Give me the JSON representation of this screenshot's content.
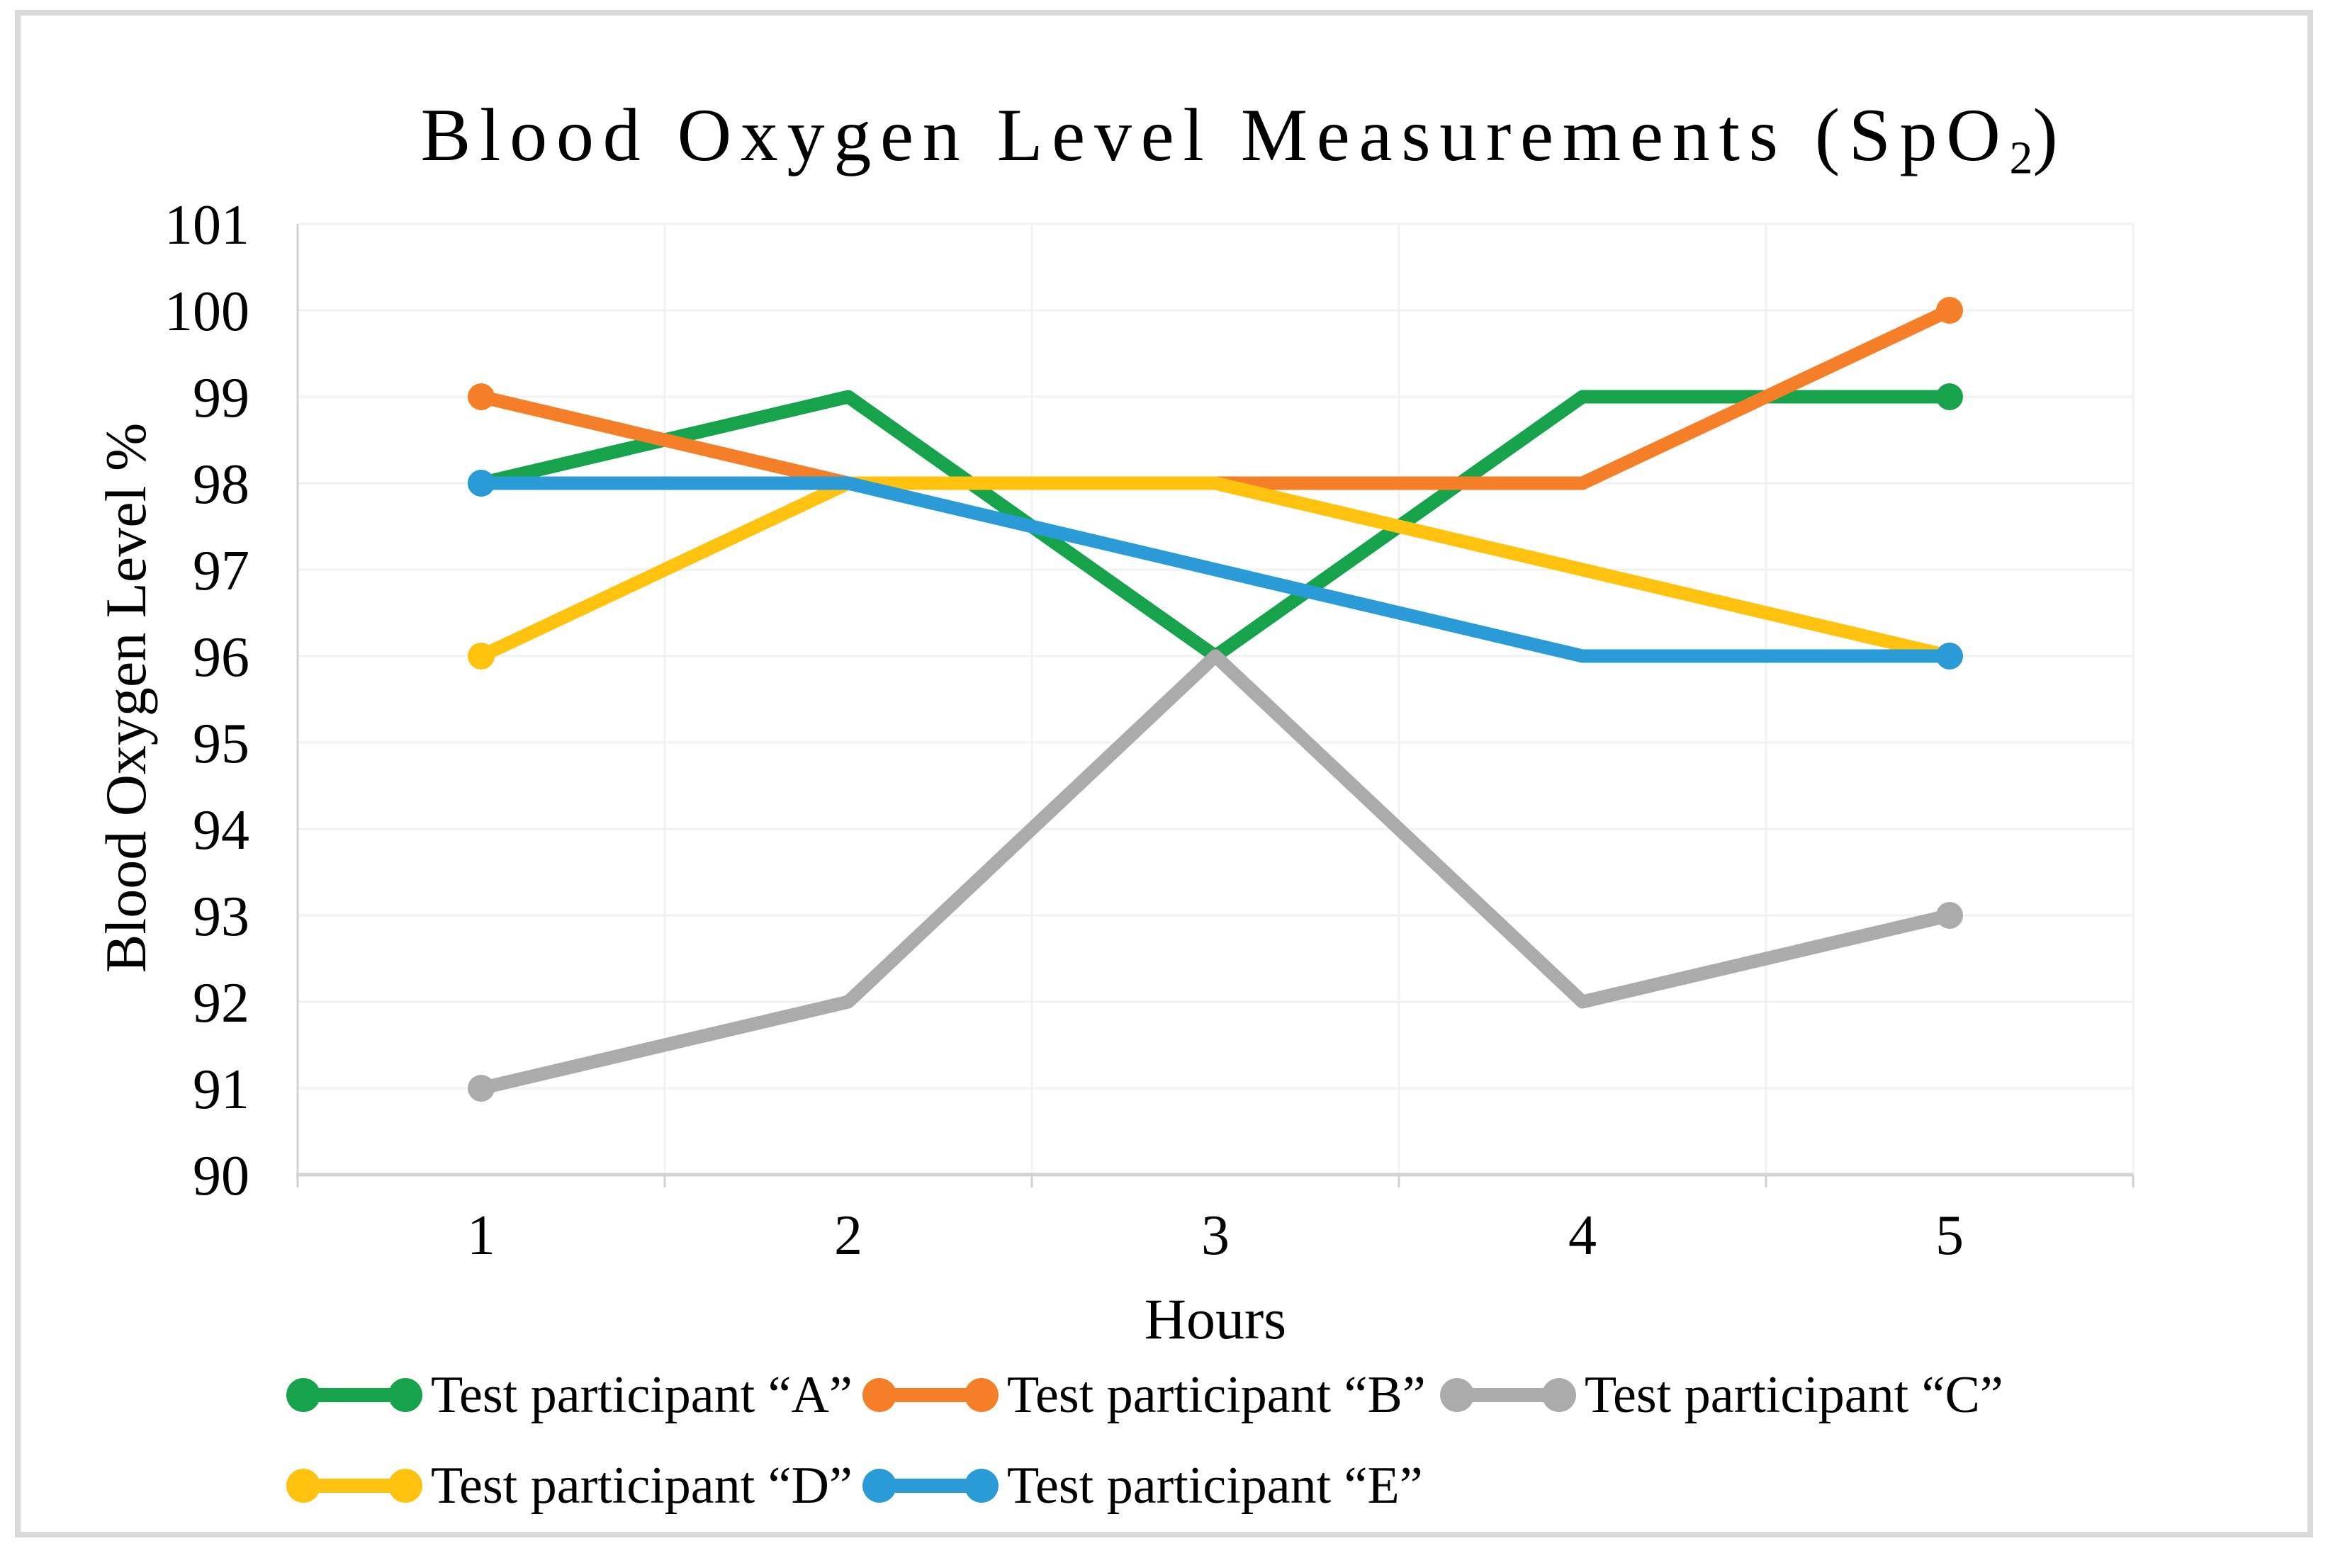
{
  "chart_data": {
    "type": "line",
    "title": "Blood Oxygen Level Measurements (SpO2)",
    "title_display": {
      "base": "Blood Oxygen Level Measurements (SpO",
      "subscript": "2",
      "suffix": ")"
    },
    "xlabel": "Hours",
    "ylabel": "Blood Oxygen Level %",
    "categories": [
      1,
      2,
      3,
      4,
      5
    ],
    "ylim": [
      90,
      101
    ],
    "yticks": [
      90,
      91,
      92,
      93,
      94,
      95,
      96,
      97,
      98,
      99,
      100,
      101
    ],
    "grid": true,
    "legend_position": "bottom",
    "series": [
      {
        "name": "Test participant “A”",
        "color": "#16A34B",
        "values": [
          98,
          99,
          96,
          99,
          99
        ]
      },
      {
        "name": "Test participant “B”",
        "color": "#F57E28",
        "values": [
          99,
          98,
          98,
          98,
          100
        ]
      },
      {
        "name": "Test participant “C”",
        "color": "#ABABAB",
        "values": [
          91,
          92,
          96,
          92,
          93
        ]
      },
      {
        "name": "Test participant “D”",
        "color": "#FFC20E",
        "values": [
          96,
          98,
          98,
          97,
          96
        ]
      },
      {
        "name": "Test participant “E”",
        "color": "#2B9BD7",
        "values": [
          98,
          98,
          97,
          96,
          96
        ]
      }
    ],
    "legend_rows": [
      [
        0,
        1,
        2
      ],
      [
        3,
        4
      ]
    ]
  },
  "style_colors": {
    "gridline": "#F2F2F2",
    "axis_line": "#D2D2D2",
    "frame_border": "#DADADA",
    "text": "#000000"
  }
}
